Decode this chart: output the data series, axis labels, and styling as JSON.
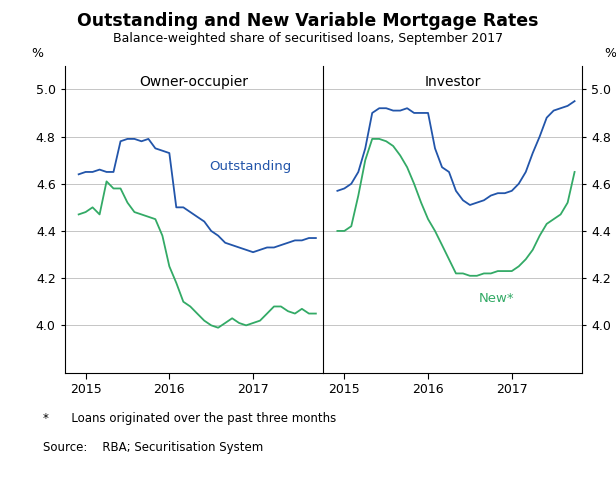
{
  "title": "Outstanding and New Variable Mortgage Rates",
  "subtitle": "Balance-weighted share of securitised loans, September 2017",
  "footnote": "*      Loans originated over the past three months",
  "source": "Source:    RBA; Securitisation System",
  "ylim": [
    3.8,
    5.1
  ],
  "yticks": [
    4.0,
    4.2,
    4.4,
    4.6,
    4.8,
    5.0
  ],
  "ylabel_left": "%",
  "ylabel_right": "%",
  "panel1_label": "Owner-occupier",
  "panel2_label": "Investor",
  "outstanding_label": "Outstanding",
  "new_label": "New*",
  "outstanding_color": "#2255aa",
  "new_color": "#33aa66",
  "background_color": "#ffffff",
  "owner_outstanding": {
    "dates": [
      2014.917,
      2015.0,
      2015.083,
      2015.167,
      2015.25,
      2015.333,
      2015.417,
      2015.5,
      2015.583,
      2015.667,
      2015.75,
      2015.833,
      2015.917,
      2016.0,
      2016.083,
      2016.167,
      2016.25,
      2016.333,
      2016.417,
      2016.5,
      2016.583,
      2016.667,
      2016.75,
      2016.833,
      2016.917,
      2017.0,
      2017.083,
      2017.167,
      2017.25,
      2017.333,
      2017.417,
      2017.5,
      2017.583,
      2017.667,
      2017.75
    ],
    "values": [
      4.64,
      4.65,
      4.65,
      4.66,
      4.65,
      4.65,
      4.78,
      4.79,
      4.79,
      4.78,
      4.79,
      4.75,
      4.74,
      4.73,
      4.5,
      4.5,
      4.48,
      4.46,
      4.44,
      4.4,
      4.38,
      4.35,
      4.34,
      4.33,
      4.32,
      4.31,
      4.32,
      4.33,
      4.33,
      4.34,
      4.35,
      4.36,
      4.36,
      4.37,
      4.37
    ]
  },
  "owner_new": {
    "dates": [
      2014.917,
      2015.0,
      2015.083,
      2015.167,
      2015.25,
      2015.333,
      2015.417,
      2015.5,
      2015.583,
      2015.667,
      2015.75,
      2015.833,
      2015.917,
      2016.0,
      2016.083,
      2016.167,
      2016.25,
      2016.333,
      2016.417,
      2016.5,
      2016.583,
      2016.667,
      2016.75,
      2016.833,
      2016.917,
      2017.0,
      2017.083,
      2017.167,
      2017.25,
      2017.333,
      2017.417,
      2017.5,
      2017.583,
      2017.667,
      2017.75
    ],
    "values": [
      4.47,
      4.48,
      4.5,
      4.47,
      4.61,
      4.58,
      4.58,
      4.52,
      4.48,
      4.47,
      4.46,
      4.45,
      4.38,
      4.25,
      4.18,
      4.1,
      4.08,
      4.05,
      4.02,
      4.0,
      3.99,
      4.01,
      4.03,
      4.01,
      4.0,
      4.01,
      4.02,
      4.05,
      4.08,
      4.08,
      4.06,
      4.05,
      4.07,
      4.05,
      4.05
    ]
  },
  "investor_outstanding": {
    "dates": [
      2014.917,
      2015.0,
      2015.083,
      2015.167,
      2015.25,
      2015.333,
      2015.417,
      2015.5,
      2015.583,
      2015.667,
      2015.75,
      2015.833,
      2015.917,
      2016.0,
      2016.083,
      2016.167,
      2016.25,
      2016.333,
      2016.417,
      2016.5,
      2016.583,
      2016.667,
      2016.75,
      2016.833,
      2016.917,
      2017.0,
      2017.083,
      2017.167,
      2017.25,
      2017.333,
      2017.417,
      2017.5,
      2017.583,
      2017.667,
      2017.75
    ],
    "values": [
      4.57,
      4.58,
      4.6,
      4.65,
      4.75,
      4.9,
      4.92,
      4.92,
      4.91,
      4.91,
      4.92,
      4.9,
      4.9,
      4.9,
      4.75,
      4.67,
      4.65,
      4.57,
      4.53,
      4.51,
      4.52,
      4.53,
      4.55,
      4.56,
      4.56,
      4.57,
      4.6,
      4.65,
      4.73,
      4.8,
      4.88,
      4.91,
      4.92,
      4.93,
      4.95
    ]
  },
  "investor_new": {
    "dates": [
      2014.917,
      2015.0,
      2015.083,
      2015.167,
      2015.25,
      2015.333,
      2015.417,
      2015.5,
      2015.583,
      2015.667,
      2015.75,
      2015.833,
      2015.917,
      2016.0,
      2016.083,
      2016.167,
      2016.25,
      2016.333,
      2016.417,
      2016.5,
      2016.583,
      2016.667,
      2016.75,
      2016.833,
      2016.917,
      2017.0,
      2017.083,
      2017.167,
      2017.25,
      2017.333,
      2017.417,
      2017.5,
      2017.583,
      2017.667,
      2017.75
    ],
    "values": [
      4.4,
      4.4,
      4.42,
      4.55,
      4.7,
      4.79,
      4.79,
      4.78,
      4.76,
      4.72,
      4.67,
      4.6,
      4.52,
      4.45,
      4.4,
      4.34,
      4.28,
      4.22,
      4.22,
      4.21,
      4.21,
      4.22,
      4.22,
      4.23,
      4.23,
      4.23,
      4.25,
      4.28,
      4.32,
      4.38,
      4.43,
      4.45,
      4.47,
      4.52,
      4.65
    ]
  }
}
